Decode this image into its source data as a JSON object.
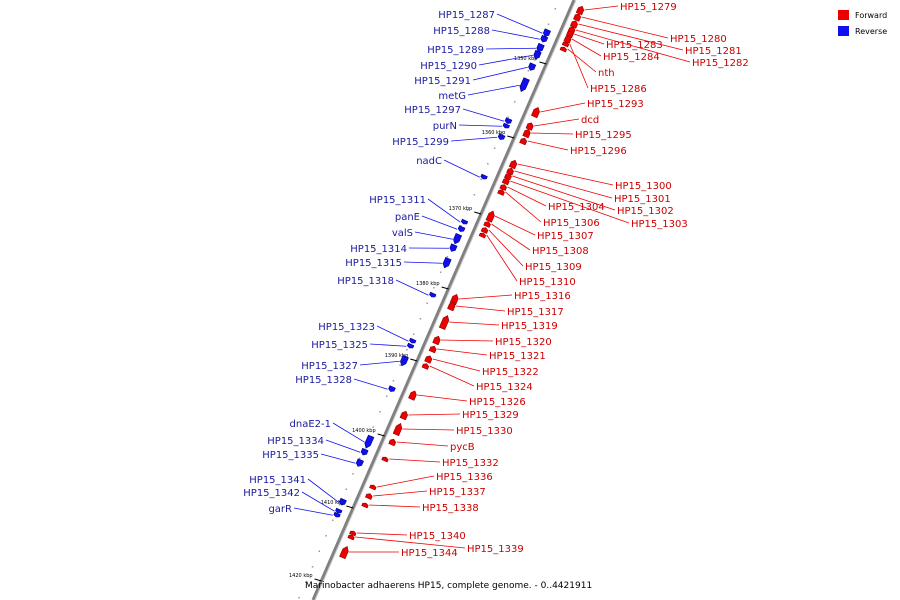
{
  "caption": "Marinobacter adhaerens HP15, complete genome. - 0..4421911",
  "legend": [
    {
      "label": "Forward",
      "color": "#ee0000"
    },
    {
      "label": "Reverse",
      "color": "#1010ee"
    }
  ],
  "colors": {
    "forward": "#ee0000",
    "reverse": "#1010ee",
    "backbone": "#808080",
    "tick": "#000000"
  },
  "ticks": [
    "1350 kbp",
    "1360 kbp",
    "1370 kbp",
    "1380 kbp",
    "1390 kbp",
    "1400 kbp",
    "1410 kbp",
    "1420 kbp"
  ],
  "forward_genes": [
    "HP15_1279",
    "HP15_1280",
    "HP15_1281",
    "HP15_1282",
    "HP15_1283",
    "HP15_1284",
    "HP15_1286",
    "nth",
    "HP15_1293",
    "dcd",
    "HP15_1295",
    "HP15_1296",
    "HP15_1300",
    "HP15_1301",
    "HP15_1302",
    "HP15_1303",
    "HP15_1304",
    "HP15_1306",
    "HP15_1307",
    "HP15_1308",
    "HP15_1309",
    "HP15_1310",
    "HP15_1316",
    "HP15_1317",
    "HP15_1319",
    "HP15_1320",
    "HP15_1321",
    "HP15_1322",
    "HP15_1324",
    "HP15_1326",
    "HP15_1329",
    "HP15_1330",
    "pycB",
    "HP15_1332",
    "HP15_1336",
    "HP15_1337",
    "HP15_1338",
    "HP15_1340",
    "HP15_1339",
    "HP15_1344"
  ],
  "reverse_genes": [
    "HP15_1287",
    "HP15_1288",
    "HP15_1289",
    "HP15_1290",
    "HP15_1291",
    "metG",
    "HP15_1297",
    "purN",
    "HP15_1299",
    "nadC",
    "HP15_1311",
    "panE",
    "valS",
    "HP15_1314",
    "HP15_1315",
    "HP15_1318",
    "HP15_1323",
    "HP15_1325",
    "HP15_1327",
    "HP15_1328",
    "dnaE2-1",
    "HP15_1334",
    "HP15_1335",
    "HP15_1341",
    "HP15_1342",
    "garR"
  ]
}
